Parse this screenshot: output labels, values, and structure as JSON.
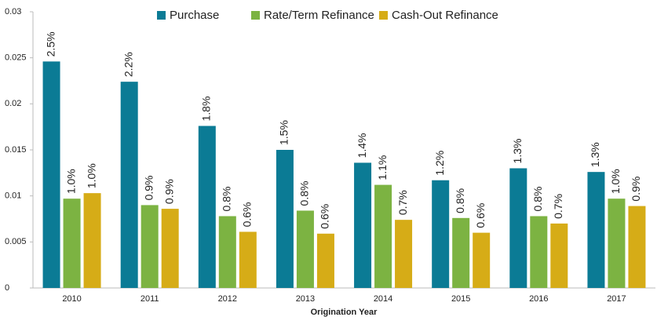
{
  "chart_data": {
    "type": "bar",
    "categories": [
      "2010",
      "2011",
      "2012",
      "2013",
      "2014",
      "2015",
      "2016",
      "2017"
    ],
    "x_label": "Origination Year",
    "series": [
      {
        "name": "Purchase",
        "color": "#0b7b95",
        "values": [
          0.0246,
          0.0224,
          0.0176,
          0.015,
          0.0136,
          0.0117,
          0.013,
          0.0126
        ],
        "value_labels": [
          "2.5%",
          "2.2%",
          "1.8%",
          "1.5%",
          "1.4%",
          "1.2%",
          "1.3%",
          "1.3%"
        ]
      },
      {
        "name": "Rate/Term Refinance",
        "color": "#7cb342",
        "values": [
          0.0097,
          0.009,
          0.0078,
          0.0084,
          0.0112,
          0.0076,
          0.0078,
          0.0097
        ],
        "value_labels": [
          "1.0%",
          "0.9%",
          "0.8%",
          "0.8%",
          "1.1%",
          "0.8%",
          "0.8%",
          "1.0%"
        ]
      },
      {
        "name": "Cash-Out Refinance",
        "color": "#d6ac17",
        "values": [
          0.0103,
          0.0086,
          0.0061,
          0.0059,
          0.0074,
          0.006,
          0.007,
          0.0089
        ],
        "value_labels": [
          "1.0%",
          "0.9%",
          "0.6%",
          "0.6%",
          "0.7%",
          "0.6%",
          "0.7%",
          "0.9%"
        ]
      }
    ],
    "ylim": [
      0,
      0.03
    ],
    "yticks": [
      0,
      0.005,
      0.01,
      0.015,
      0.02,
      0.025,
      0.03
    ],
    "legend": "top",
    "grid": false
  }
}
